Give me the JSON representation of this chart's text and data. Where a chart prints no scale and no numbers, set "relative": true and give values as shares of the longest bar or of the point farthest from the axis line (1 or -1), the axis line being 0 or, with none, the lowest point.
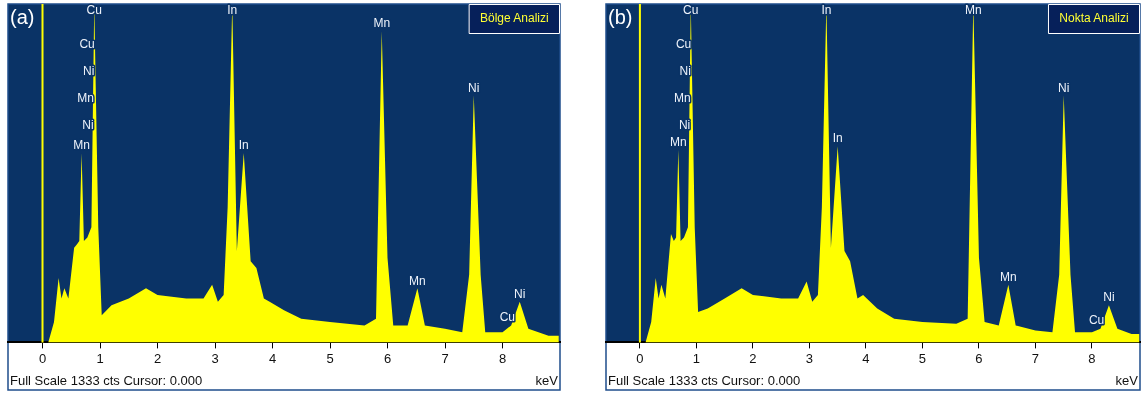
{
  "chart_data": [
    {
      "type": "area",
      "title": "(a)",
      "subtitle": "Bölge Analizi",
      "xlabel": "keV",
      "relative": true,
      "xlim": [
        -0.6,
        9.0
      ],
      "xticks": [
        0,
        1,
        2,
        3,
        4,
        5,
        6,
        7,
        8
      ],
      "x": [
        -0.05,
        0.1,
        0.15,
        0.2,
        0.28,
        0.33,
        0.38,
        0.45,
        0.55,
        0.6,
        0.64,
        0.68,
        0.72,
        0.78,
        0.85,
        0.9,
        0.97,
        1.03,
        1.2,
        1.5,
        1.8,
        2.0,
        2.5,
        2.8,
        2.95,
        3.05,
        3.15,
        3.22,
        3.3,
        3.38,
        3.5,
        3.62,
        3.72,
        3.85,
        3.95,
        4.2,
        4.5,
        5.0,
        5.6,
        5.8,
        5.9,
        6.0,
        6.1,
        6.35,
        6.52,
        6.65,
        7.0,
        7.3,
        7.42,
        7.5,
        7.62,
        7.7,
        8.0,
        8.15,
        8.3,
        8.45,
        8.8,
        8.98
      ],
      "series": [
        {
          "color": "#ffff00",
          "values": [
            0,
            0,
            0.03,
            0.06,
            0.19,
            0.13,
            0.16,
            0.13,
            0.28,
            0.29,
            0.3,
            0.56,
            0.3,
            0.31,
            0.34,
            1,
            0.34,
            0.08,
            0.11,
            0.13,
            0.16,
            0.14,
            0.13,
            0.13,
            0.17,
            0.12,
            0.14,
            0.4,
            1,
            0.27,
            0.56,
            0.24,
            0.22,
            0.13,
            0.12,
            0.095,
            0.07,
            0.06,
            0.05,
            0.07,
            0.92,
            0.25,
            0.05,
            0.05,
            0.16,
            0.05,
            0.04,
            0.03,
            0.2,
            0.73,
            0.2,
            0.03,
            0.03,
            0.05,
            0.12,
            0.04,
            0.02,
            0.02
          ]
        }
      ],
      "ref_lines": [
        {
          "axis": "x",
          "value": 0,
          "color": "#ffff00"
        }
      ],
      "annotations": [
        {
          "text": "Cu",
          "x": 0.9,
          "y": 1
        },
        {
          "text": "Cu",
          "x": 0.891,
          "y": 0.88
        },
        {
          "text": "Ni",
          "x": 0.885,
          "y": 0.8
        },
        {
          "text": "Mn",
          "x": 0.879,
          "y": 0.72
        },
        {
          "text": "Ni",
          "x": 0.873,
          "y": 0.64
        },
        {
          "text": "Mn",
          "x": 0.68,
          "y": 0.56
        },
        {
          "text": "In",
          "x": 3.3,
          "y": 1
        },
        {
          "text": "In",
          "x": 3.5,
          "y": 0.56
        },
        {
          "text": "Mn",
          "x": 5.9,
          "y": 0.92
        },
        {
          "text": "Mn",
          "x": 6.52,
          "y": 0.16
        },
        {
          "text": "Ni",
          "x": 7.5,
          "y": 0.73
        },
        {
          "text": "Ni",
          "x": 8.3,
          "y": 0.12
        },
        {
          "text": "Cu",
          "x": 8.2,
          "y": 0.073
        },
        "Full Scale 1333 cts Cursor: 0.000"
      ]
    },
    {
      "type": "area",
      "title": "(b)",
      "subtitle": "Nokta Analizi",
      "xlabel": "keV",
      "relative": true,
      "xlim": [
        -0.6,
        8.85
      ],
      "xticks": [
        0,
        1,
        2,
        3,
        4,
        5,
        6,
        7,
        8
      ],
      "x": [
        -0.05,
        0.1,
        0.15,
        0.2,
        0.28,
        0.33,
        0.38,
        0.45,
        0.55,
        0.6,
        0.64,
        0.68,
        0.72,
        0.78,
        0.85,
        0.9,
        0.97,
        1.03,
        1.2,
        1.5,
        1.8,
        2.0,
        2.5,
        2.8,
        2.95,
        3.05,
        3.15,
        3.22,
        3.3,
        3.38,
        3.5,
        3.62,
        3.72,
        3.85,
        3.95,
        4.2,
        4.5,
        5.0,
        5.6,
        5.8,
        5.9,
        6.0,
        6.1,
        6.35,
        6.52,
        6.65,
        7.0,
        7.3,
        7.42,
        7.5,
        7.62,
        7.7,
        8.0,
        8.15,
        8.3,
        8.45,
        8.7,
        8.84
      ],
      "series": [
        {
          "color": "#ffff00",
          "values": [
            0,
            0,
            0.03,
            0.06,
            0.19,
            0.13,
            0.17,
            0.13,
            0.32,
            0.3,
            0.31,
            0.57,
            0.3,
            0.31,
            0.34,
            1,
            0.34,
            0.09,
            0.1,
            0.13,
            0.16,
            0.14,
            0.13,
            0.13,
            0.18,
            0.12,
            0.14,
            0.4,
            1,
            0.28,
            0.58,
            0.27,
            0.24,
            0.13,
            0.14,
            0.1,
            0.07,
            0.06,
            0.055,
            0.07,
            1,
            0.25,
            0.06,
            0.05,
            0.17,
            0.05,
            0.035,
            0.03,
            0.2,
            0.73,
            0.2,
            0.03,
            0.03,
            0.04,
            0.11,
            0.04,
            0.025,
            0.025
          ]
        }
      ],
      "ref_lines": [
        {
          "axis": "x",
          "value": 0,
          "color": "#ffff00"
        }
      ],
      "annotations": [
        {
          "text": "Cu",
          "x": 0.9,
          "y": 1
        },
        {
          "text": "Cu",
          "x": 0.891,
          "y": 0.88
        },
        {
          "text": "Ni",
          "x": 0.885,
          "y": 0.8
        },
        {
          "text": "Mn",
          "x": 0.879,
          "y": 0.72
        },
        {
          "text": "Ni",
          "x": 0.873,
          "y": 0.64
        },
        {
          "text": "Mn",
          "x": 0.68,
          "y": 0.57
        },
        {
          "text": "In",
          "x": 3.3,
          "y": 1
        },
        {
          "text": "In",
          "x": 3.5,
          "y": 0.58
        },
        {
          "text": "Mn",
          "x": 5.9,
          "y": 1
        },
        {
          "text": "Mn",
          "x": 6.52,
          "y": 0.17
        },
        {
          "text": "Ni",
          "x": 7.5,
          "y": 0.73
        },
        {
          "text": "Ni",
          "x": 8.3,
          "y": 0.11
        },
        {
          "text": "Cu",
          "x": 8.2,
          "y": 0.063
        },
        "Full Scale 1333 cts Cursor: 0.000"
      ]
    }
  ]
}
